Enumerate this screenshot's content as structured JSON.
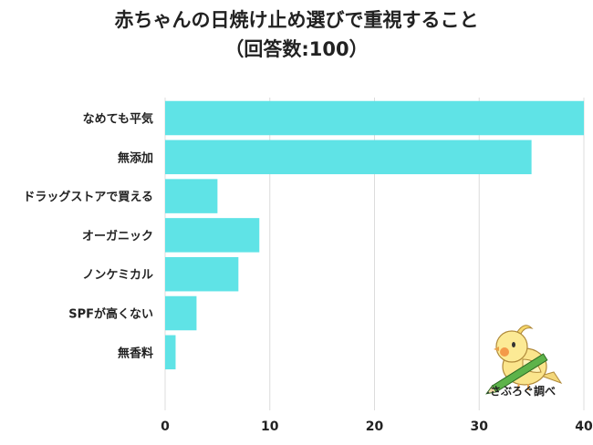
{
  "chart_data": {
    "type": "bar",
    "orientation": "horizontal",
    "title": "赤ちゃんの日焼け止め選びで重視すること",
    "subtitle": "（回答数:100）",
    "categories": [
      "なめても平気",
      "無添加",
      "ドラッグストアで買える",
      "オーガニック",
      "ノンケミカル",
      "SPFが高くない",
      "無香料"
    ],
    "values": [
      40,
      35,
      5,
      9,
      7,
      3,
      1
    ],
    "xlim": [
      0,
      40
    ],
    "xticks": [
      "0",
      "10",
      "20",
      "30",
      "40"
    ],
    "grid": true,
    "bar_color": "#5fe3e6"
  },
  "watermark": "さぶろぐ調べ"
}
